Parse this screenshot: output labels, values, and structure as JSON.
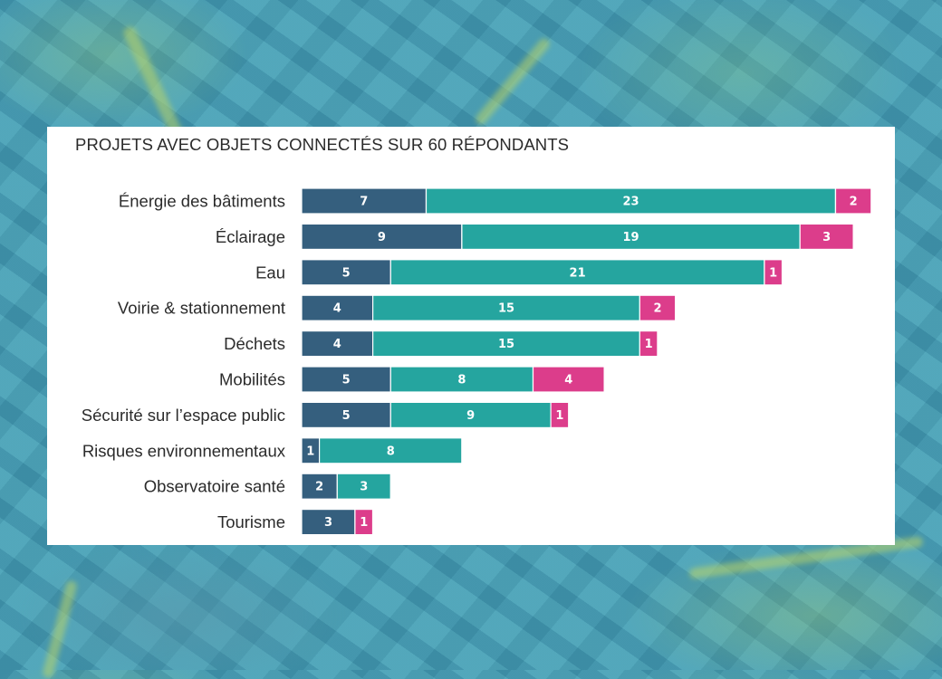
{
  "chart_data": {
    "type": "bar",
    "orientation": "horizontal",
    "stacked": true,
    "title": "PROJETS AVEC OBJETS CONNECTÉS SUR 60 RÉPONDANTS",
    "xlabel": "",
    "ylabel": "",
    "grid": false,
    "legend": "none",
    "categories": [
      "Énergie des bâtiments",
      "Éclairage",
      "Eau",
      "Voirie & stationnement",
      "Déchets",
      "Mobilités",
      "Sécurité sur l’espace public",
      "Risques environnementaux",
      "Observatoire santé",
      "Tourisme"
    ],
    "series": [
      {
        "name": "series-1",
        "color": "#355f7e",
        "values": [
          7,
          9,
          5,
          4,
          4,
          5,
          5,
          1,
          2,
          3
        ]
      },
      {
        "name": "series-2",
        "color": "#25a59f",
        "values": [
          23,
          19,
          21,
          15,
          15,
          8,
          9,
          8,
          3,
          0
        ]
      },
      {
        "name": "series-3",
        "color": "#dc3d8b",
        "values": [
          2,
          3,
          1,
          2,
          1,
          4,
          1,
          0,
          0,
          1
        ]
      }
    ],
    "xlim": [
      0,
      32
    ]
  }
}
